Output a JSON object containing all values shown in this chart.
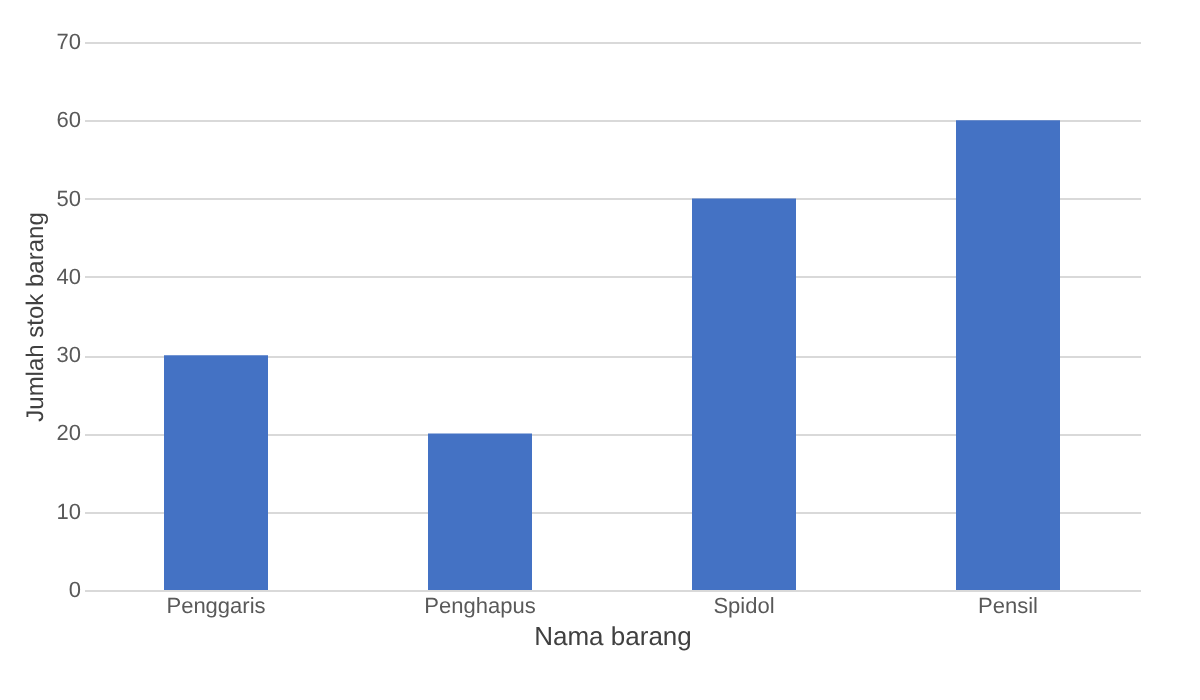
{
  "chart_data": {
    "type": "bar",
    "xlabel": "Nama barang",
    "ylabel": "Jumlah stok barang",
    "categories": [
      "Penggaris",
      "Penghapus",
      "Spidol",
      "Pensil"
    ],
    "values": [
      30,
      20,
      50,
      60
    ],
    "color": "#4472c4",
    "ylim": [
      0,
      70
    ],
    "yticks": [
      0,
      10,
      20,
      30,
      40,
      50,
      60,
      70
    ],
    "grid": "y"
  }
}
